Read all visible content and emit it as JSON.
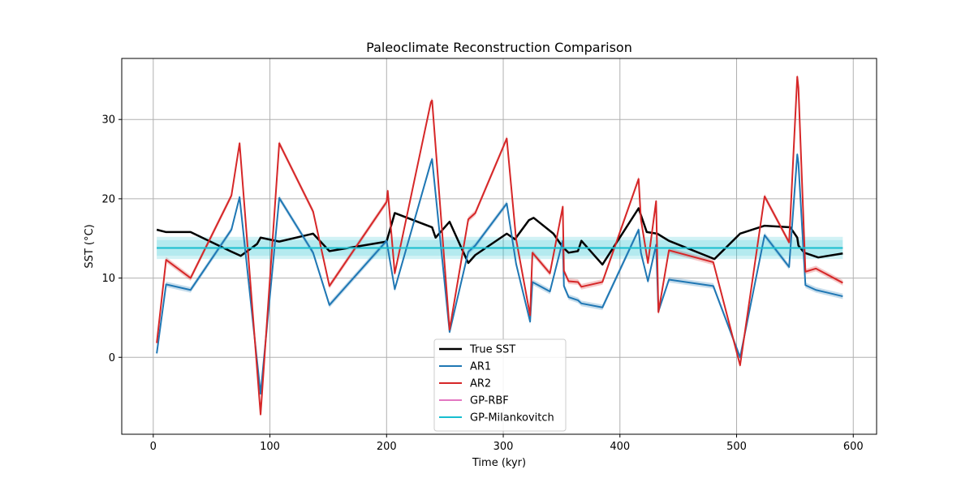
{
  "chart_data": {
    "type": "line",
    "title": "Paleoclimate Reconstruction Comparison",
    "xlabel": "Time (kyr)",
    "ylabel": "SST (°C)",
    "xlim": [
      -27,
      620
    ],
    "ylim": [
      -9.7,
      37.7
    ],
    "xticks": [
      0,
      100,
      200,
      300,
      400,
      500,
      600
    ],
    "yticks": [
      0,
      10,
      20,
      30
    ],
    "grid": true,
    "legend_position": "lower-center",
    "series": [
      {
        "name": "True SST",
        "color": "#000000",
        "x": [
          3,
          11,
          32,
          66,
          75,
          89,
          92,
          108,
          137,
          151,
          200,
          207,
          239,
          242,
          254,
          270,
          276,
          303,
          310,
          322,
          326,
          343,
          351,
          356,
          364,
          367,
          385,
          416,
          423,
          432,
          442,
          481,
          503,
          524,
          546,
          552,
          553,
          558,
          570,
          591
        ],
        "y": [
          16.1,
          15.8,
          15.8,
          13.4,
          12.8,
          14.3,
          15.1,
          14.6,
          15.6,
          13.4,
          14.6,
          18.2,
          16.4,
          15.1,
          17.1,
          11.9,
          12.9,
          15.6,
          14.9,
          17.3,
          17.6,
          15.6,
          13.9,
          13.2,
          13.4,
          14.7,
          11.7,
          18.8,
          15.8,
          15.6,
          14.7,
          12.4,
          15.6,
          16.6,
          16.4,
          15.1,
          14.1,
          13.2,
          12.6,
          13.1
        ]
      },
      {
        "name": "AR1",
        "color": "#1f77b4",
        "x": [
          3,
          11,
          32,
          67,
          74,
          92,
          108,
          137,
          151,
          200,
          207,
          238,
          239,
          254,
          270,
          276,
          303,
          311,
          323,
          325,
          340,
          351,
          352,
          356,
          364,
          367,
          385,
          416,
          418,
          424,
          431,
          433,
          442,
          480,
          503,
          524,
          545,
          552,
          553,
          559,
          568,
          591
        ],
        "y": [
          0.5,
          9.2,
          8.5,
          16.1,
          20.2,
          -4.6,
          20.1,
          13.2,
          6.6,
          14.7,
          8.6,
          24.6,
          25.0,
          3.2,
          13.3,
          14.1,
          19.4,
          11.8,
          4.5,
          9.5,
          8.3,
          14.7,
          9.0,
          7.6,
          7.2,
          6.8,
          6.3,
          16.1,
          13.2,
          9.6,
          14.2,
          5.8,
          9.8,
          9.0,
          0.0,
          15.4,
          11.4,
          25.6,
          24.5,
          9.1,
          8.5,
          7.7
        ]
      },
      {
        "name": "AR2",
        "color": "#d62728",
        "x": [
          3,
          11,
          32,
          67,
          74,
          92,
          108,
          137,
          151,
          200,
          201,
          207,
          238,
          239,
          254,
          270,
          276,
          303,
          311,
          323,
          325,
          340,
          351,
          352,
          356,
          364,
          367,
          385,
          416,
          418,
          424,
          431,
          433,
          442,
          480,
          503,
          524,
          545,
          552,
          553,
          559,
          568,
          591
        ],
        "y": [
          1.8,
          12.3,
          10.0,
          20.4,
          27.0,
          -7.2,
          27.0,
          18.4,
          9.0,
          19.6,
          21.0,
          10.6,
          32.2,
          32.4,
          3.5,
          17.4,
          18.2,
          27.6,
          14.9,
          5.3,
          13.2,
          10.6,
          19.0,
          10.9,
          9.6,
          9.5,
          8.9,
          9.5,
          22.5,
          17.4,
          11.9,
          19.7,
          5.7,
          13.5,
          12.0,
          -1.0,
          20.3,
          14.5,
          35.4,
          34.0,
          10.8,
          11.2,
          9.4
        ]
      },
      {
        "name": "GP-RBF",
        "color": "#e377c2",
        "x": [
          3,
          591
        ],
        "y": [
          13.8,
          13.8
        ]
      },
      {
        "name": "GP-Milankovitch",
        "color": "#17becf",
        "x": [
          3,
          591
        ],
        "y": [
          13.8,
          13.8
        ],
        "band": [
          12.4,
          15.2
        ]
      }
    ]
  }
}
